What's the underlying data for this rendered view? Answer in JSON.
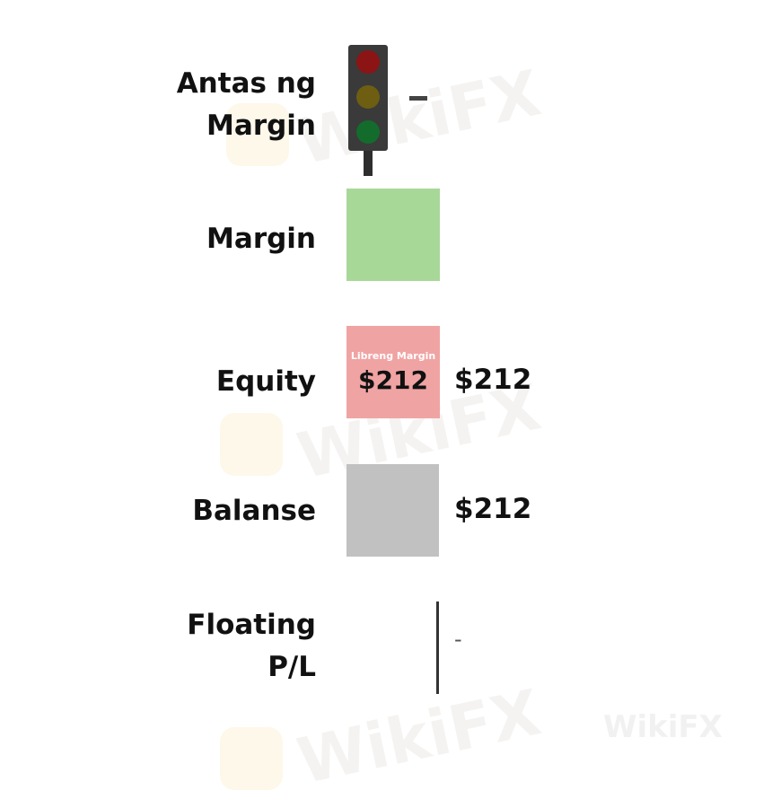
{
  "watermark": "WikiFX",
  "rows": {
    "margin_level": {
      "label_line1": "Antas ng",
      "label_line2": "Margin",
      "value": "-",
      "icon": "traffic-light-icon"
    },
    "margin": {
      "label": "Margin",
      "color": "#a8d898"
    },
    "equity": {
      "label": "Equity",
      "box_caption": "Libreng Margin",
      "box_value": "$212",
      "value": "$212",
      "color": "#f0a3a3"
    },
    "balance": {
      "label": "Balanse",
      "value": "$212",
      "color": "#c1c1c1"
    },
    "floating_pl": {
      "label_line1": "Floating",
      "label_line2": "P/L",
      "value": "-"
    }
  }
}
